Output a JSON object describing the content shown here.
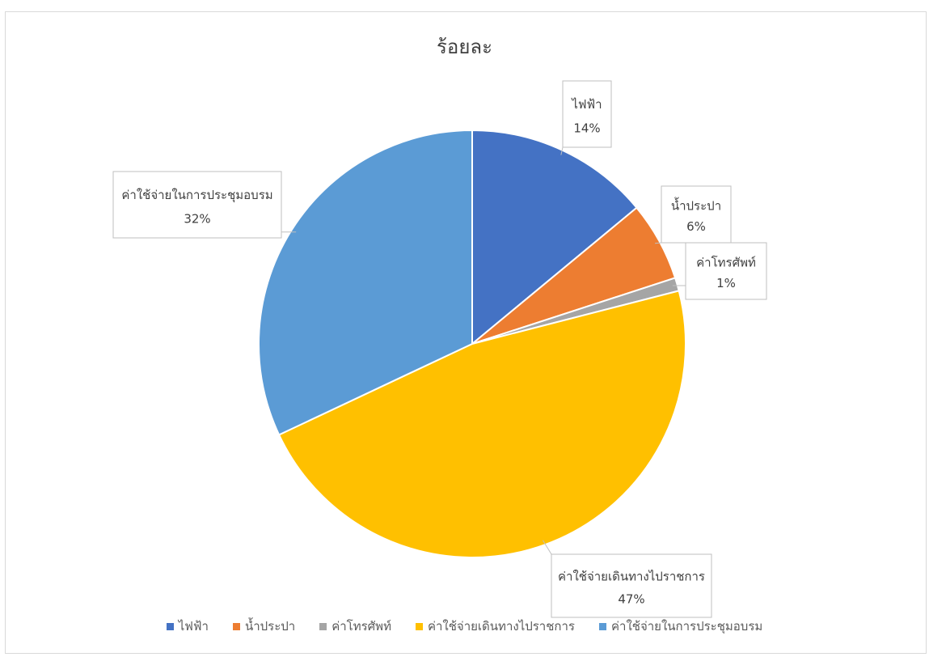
{
  "chart_data": {
    "type": "pie",
    "title": "ร้อยละ",
    "categories": [
      "ไฟฟ้า",
      "น้ำประปา",
      "ค่าโทรศัพท์",
      "ค่าใช้จ่ายเดินทางไปราชการ",
      "ค่าใช้จ่ายในการประชุมอบรม"
    ],
    "values": [
      14,
      6,
      1,
      47,
      32
    ],
    "data_labels": [
      "14%",
      "6%",
      "1%",
      "47%",
      "32%"
    ],
    "colors": [
      "#4472C4",
      "#ED7D31",
      "#A5A5A5",
      "#FFC000",
      "#5B9BD5"
    ],
    "legend_position": "bottom",
    "start_angle_deg": 0,
    "direction": "clockwise"
  }
}
